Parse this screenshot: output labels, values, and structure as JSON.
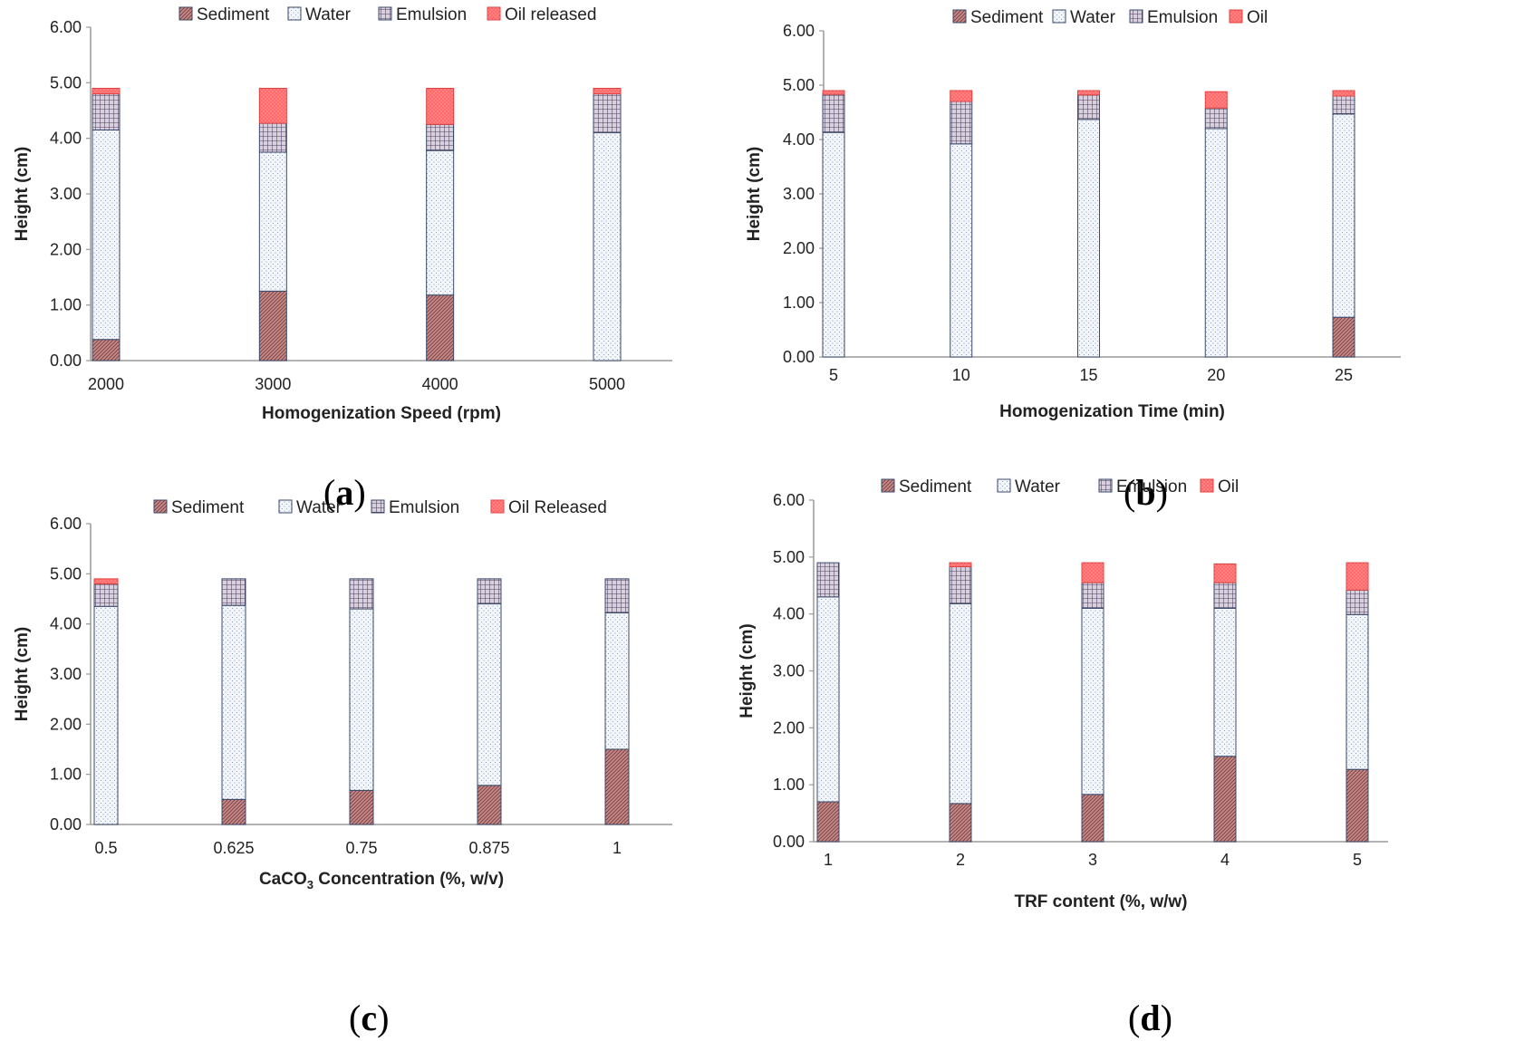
{
  "colors": {
    "sediment": "#b36b6b",
    "water": "#f3f6fb",
    "emulsion": "#8a7a92",
    "oil": "#ff6b6b",
    "axis": "#9a9a9a",
    "outline": "#3b4a6b"
  },
  "chart_data": [
    {
      "type": "bar",
      "stacked": true,
      "caption": "a",
      "xlabel": "Homogenization Speed (rpm)",
      "ylabel": "Height (cm)",
      "ylim": [
        0,
        6
      ],
      "yticks": [
        "0.00",
        "1.00",
        "2.00",
        "3.00",
        "4.00",
        "5.00",
        "6.00"
      ],
      "categories": [
        "2000",
        "3000",
        "4000",
        "5000"
      ],
      "legend": [
        "Sediment",
        "Water",
        "Emulsion",
        "Oil released"
      ],
      "series": [
        {
          "name": "Sediment",
          "values": [
            0.38,
            1.25,
            1.18,
            0.0
          ]
        },
        {
          "name": "Water",
          "values": [
            3.77,
            2.5,
            2.6,
            4.1
          ]
        },
        {
          "name": "Emulsion",
          "values": [
            0.65,
            0.52,
            0.47,
            0.7
          ]
        },
        {
          "name": "Oil released",
          "values": [
            0.1,
            0.63,
            0.65,
            0.1
          ]
        }
      ]
    },
    {
      "type": "bar",
      "stacked": true,
      "caption": "b",
      "xlabel": "Homogenization Time (min)",
      "ylabel": "Height (cm)",
      "ylim": [
        0,
        6
      ],
      "yticks": [
        "0.00",
        "1.00",
        "2.00",
        "3.00",
        "4.00",
        "5.00",
        "6.00"
      ],
      "categories": [
        "5",
        "10",
        "15",
        "20",
        "25"
      ],
      "legend": [
        "Sediment",
        "Water",
        "Emulsion",
        "Oil"
      ],
      "series": [
        {
          "name": "Sediment",
          "values": [
            0.0,
            0.0,
            0.0,
            0.0,
            0.73
          ]
        },
        {
          "name": "Water",
          "values": [
            4.13,
            3.92,
            4.37,
            4.2,
            3.74
          ]
        },
        {
          "name": "Emulsion",
          "values": [
            0.7,
            0.78,
            0.45,
            0.38,
            0.33
          ]
        },
        {
          "name": "Oil",
          "values": [
            0.07,
            0.2,
            0.08,
            0.3,
            0.1
          ]
        }
      ]
    },
    {
      "type": "bar",
      "stacked": true,
      "caption": "c",
      "xlabel_main": "CaCO",
      "xlabel_sub": "3",
      "xlabel_rest": " Concentration (%, w/v)",
      "ylabel": "Height (cm)",
      "ylim": [
        0,
        6
      ],
      "yticks": [
        "0.00",
        "1.00",
        "2.00",
        "3.00",
        "4.00",
        "5.00",
        "6.00"
      ],
      "categories": [
        "0.5",
        "0.625",
        "0.75",
        "0.875",
        "1"
      ],
      "legend": [
        "Sediment",
        "Water",
        "Emulsion",
        "Oil Released"
      ],
      "series": [
        {
          "name": "Sediment",
          "values": [
            0.0,
            0.5,
            0.68,
            0.78,
            1.5
          ]
        },
        {
          "name": "Water",
          "values": [
            4.35,
            3.87,
            3.62,
            3.62,
            2.72
          ]
        },
        {
          "name": "Emulsion",
          "values": [
            0.45,
            0.53,
            0.6,
            0.5,
            0.68
          ]
        },
        {
          "name": "Oil Released",
          "values": [
            0.1,
            0.0,
            0.0,
            0.0,
            0.0
          ]
        }
      ]
    },
    {
      "type": "bar",
      "stacked": true,
      "caption": "d",
      "xlabel": "TRF content (%, w/w)",
      "ylabel": "Height (cm)",
      "ylim": [
        0,
        6
      ],
      "yticks": [
        "0.00",
        "1.00",
        "2.00",
        "3.00",
        "4.00",
        "5.00",
        "6.00"
      ],
      "categories": [
        "1",
        "2",
        "3",
        "4",
        "5"
      ],
      "legend": [
        "Sediment",
        "Water",
        "Emulsion",
        "Oil"
      ],
      "series": [
        {
          "name": "Sediment",
          "values": [
            0.7,
            0.67,
            0.83,
            1.5,
            1.27
          ]
        },
        {
          "name": "Water",
          "values": [
            3.6,
            3.51,
            3.27,
            2.6,
            2.72
          ]
        },
        {
          "name": "Emulsion",
          "values": [
            0.6,
            0.65,
            0.45,
            0.45,
            0.43
          ]
        },
        {
          "name": "Oil",
          "values": [
            0.0,
            0.07,
            0.35,
            0.33,
            0.48
          ]
        }
      ]
    }
  ]
}
